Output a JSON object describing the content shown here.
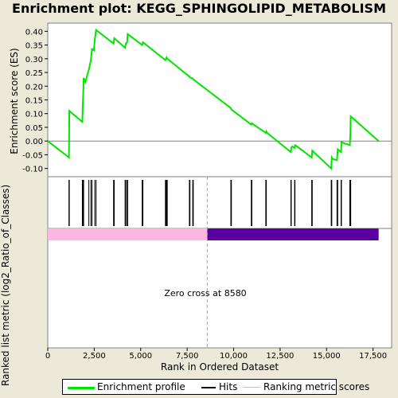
{
  "title": "Enrichment plot: KEGG_SPHINGOLIPID_METABOLISM",
  "colors": {
    "enrichment_line": "#00e400",
    "hits": "#000000",
    "positive_band": "#ffb6e0",
    "negative_band": "#5a00a0",
    "zero_cross": "#a0a0a0",
    "background": "#ece9d8"
  },
  "legend": {
    "enrichment": "Enrichment profile",
    "hits": "Hits",
    "ranking": "Ranking metric scores"
  },
  "chart_data": {
    "type": "line",
    "title": "Enrichment plot: KEGG_SPHINGOLIPID_METABOLISM",
    "ylabel": "Enrichment score (ES)",
    "xlabel": "Rank in Ordered Dataset",
    "ylabel_metric": "Ranked list metric (log2_Ratio_of_Classes)",
    "xlim": [
      0,
      18500
    ],
    "ylim": [
      -0.13,
      0.43
    ],
    "yticks": [
      -0.1,
      -0.05,
      0.0,
      0.05,
      0.1,
      0.15,
      0.2,
      0.25,
      0.3,
      0.35,
      0.4
    ],
    "ytick_labels": [
      "-0.10",
      "-0.05",
      "0.00",
      "0.05",
      "0.10",
      "0.15",
      "0.20",
      "0.25",
      "0.30",
      "0.35",
      "0.40"
    ],
    "xticks": [
      0,
      2500,
      5000,
      7500,
      10000,
      12500,
      15000,
      17500
    ],
    "xtick_labels": [
      "0",
      "2,500",
      "5,000",
      "7,500",
      "10,000",
      "12,500",
      "15,000",
      "17,500"
    ],
    "zero_cross_rank": 8580,
    "zero_cross_label": "Zero cross at 8580",
    "max_rank": 17800,
    "series": [
      {
        "name": "Enrichment profile",
        "x": [
          0,
          1140,
          1160,
          1860,
          1880,
          1910,
          1930,
          2020,
          2210,
          2320,
          2380,
          2480,
          2530,
          2600,
          3540,
          3580,
          4160,
          4200,
          4270,
          4300,
          5080,
          5120,
          6330,
          6360,
          6400,
          6430,
          7620,
          7650,
          7800,
          7830,
          9850,
          9880,
          10950,
          10980,
          11070,
          11730,
          11760,
          11800,
          13080,
          13100,
          13150,
          13280,
          13300,
          13320,
          14200,
          14230,
          15250,
          15280,
          15320,
          15560,
          15600,
          15780,
          15800,
          15830,
          16250,
          16280,
          16300,
          17800
        ],
        "y": [
          0.0,
          -0.06,
          0.11,
          0.07,
          0.125,
          0.175,
          0.23,
          0.215,
          0.26,
          0.295,
          0.335,
          0.33,
          0.37,
          0.405,
          0.355,
          0.375,
          0.34,
          0.355,
          0.36,
          0.39,
          0.35,
          0.36,
          0.295,
          0.3,
          0.305,
          0.3,
          0.235,
          0.232,
          0.228,
          0.225,
          0.12,
          0.115,
          0.06,
          0.065,
          0.06,
          0.03,
          0.035,
          0.03,
          -0.04,
          -0.025,
          -0.02,
          -0.025,
          -0.015,
          -0.015,
          -0.06,
          -0.035,
          -0.1,
          -0.06,
          -0.065,
          -0.07,
          -0.03,
          -0.04,
          0.0,
          -0.005,
          -0.015,
          0.03,
          0.09,
          0.0
        ]
      }
    ],
    "hits": [
      1140,
      1160,
      1860,
      1880,
      1910,
      1930,
      2210,
      2320,
      2380,
      2530,
      2600,
      3540,
      3580,
      4160,
      4200,
      4270,
      4300,
      5080,
      5120,
      6330,
      6360,
      6400,
      6430,
      7620,
      7650,
      7800,
      7830,
      9850,
      9880,
      10950,
      10980,
      11730,
      11760,
      13080,
      13100,
      13280,
      13300,
      14200,
      14230,
      15250,
      15280,
      15560,
      15600,
      15780,
      15800,
      16250,
      16280,
      16300
    ]
  }
}
